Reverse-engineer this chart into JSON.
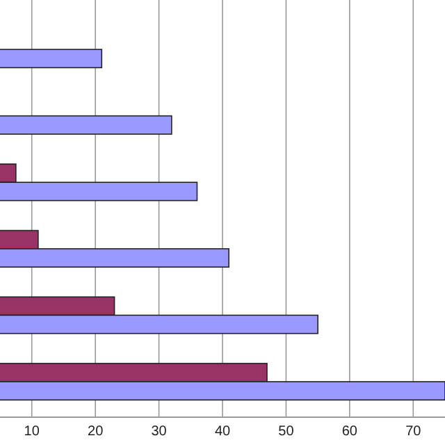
{
  "chart_data": {
    "type": "bar",
    "orientation": "horizontal",
    "categories": [
      null,
      null,
      null,
      null,
      null,
      null
    ],
    "series": [
      {
        "color": "#993366",
        "values": [
          null,
          null,
          7.5,
          11,
          23,
          47
        ]
      },
      {
        "color": "#9999ff",
        "values": [
          21,
          32,
          36,
          41,
          55,
          75
        ]
      }
    ],
    "xlim": [
      5,
      75
    ],
    "xticks": [
      10,
      20,
      30,
      40,
      50,
      60,
      70
    ],
    "grid": "x"
  }
}
